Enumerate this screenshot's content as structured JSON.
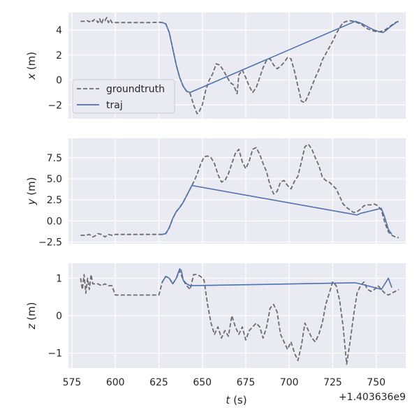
{
  "chart_data": [
    {
      "type": "line",
      "ylabel_var": "x",
      "ylabel_unit": " (m)",
      "xlim": [
        573,
        767
      ],
      "ylim": [
        -3.1,
        5.4
      ],
      "yticks": [
        -2,
        0,
        2,
        4
      ],
      "ytick_labels": [
        "−2",
        "0",
        "2",
        "4"
      ],
      "legend": {
        "placement": "lower-left",
        "entries": [
          "groundtruth",
          "traj"
        ]
      },
      "grid": true,
      "series": [
        {
          "name": "groundtruth",
          "style": "dashed",
          "color": "#6b6b6b",
          "x": [
            580,
            582,
            584,
            585,
            586,
            587,
            588,
            589,
            590,
            591,
            592,
            593,
            594,
            595,
            596,
            597,
            598,
            600,
            605,
            610,
            615,
            620,
            625,
            627,
            629,
            631,
            633,
            635,
            637,
            639,
            641,
            643,
            645,
            647,
            648,
            650,
            652,
            654,
            656,
            658,
            660,
            662,
            664,
            666,
            668,
            670,
            671,
            673,
            675,
            677,
            679,
            681,
            683,
            685,
            687,
            689,
            691,
            693,
            695,
            697,
            699,
            701,
            703,
            705,
            707,
            709,
            711,
            713,
            715,
            717,
            719,
            721,
            723,
            725,
            727,
            729,
            731,
            733,
            735,
            737,
            739,
            741,
            743,
            745,
            747,
            749,
            751,
            753,
            755,
            757,
            759,
            761,
            763
          ],
          "y": [
            4.7,
            4.7,
            4.75,
            4.65,
            4.8,
            4.7,
            4.85,
            4.8,
            4.6,
            4.9,
            4.5,
            4.85,
            4.75,
            5.0,
            4.6,
            4.85,
            4.6,
            4.6,
            4.6,
            4.6,
            4.6,
            4.6,
            4.62,
            4.6,
            4.5,
            3.8,
            2.5,
            1.2,
            0.2,
            -0.5,
            -0.9,
            -1.1,
            -2.0,
            -2.7,
            -2.6,
            -2.0,
            -0.8,
            0.0,
            0.5,
            1.3,
            1.2,
            0.8,
            0.3,
            -0.2,
            -0.4,
            -1.1,
            0.4,
            0.8,
            0.2,
            -0.5,
            -1.0,
            -0.6,
            0.2,
            1.0,
            1.6,
            1.7,
            1.2,
            0.9,
            1.1,
            1.4,
            1.8,
            1.7,
            0.7,
            -0.5,
            -1.7,
            -1.8,
            -1.2,
            -0.5,
            0.2,
            0.8,
            1.6,
            2.1,
            2.6,
            3.1,
            3.7,
            4.2,
            4.6,
            4.7,
            4.75,
            4.7,
            4.6,
            4.5,
            4.3,
            4.1,
            4.0,
            3.9,
            3.85,
            3.9,
            4.0,
            4.2,
            4.4,
            4.6,
            4.7
          ]
        },
        {
          "name": "traj",
          "style": "solid",
          "color": "#4c72b0",
          "x": [
            627,
            629,
            631,
            633,
            635,
            637,
            639,
            641,
            643,
            738,
            740,
            742,
            744,
            746,
            748,
            750,
            752,
            754,
            756,
            758,
            760,
            762
          ],
          "y": [
            4.6,
            4.5,
            3.8,
            2.5,
            1.2,
            0.2,
            -0.5,
            -0.9,
            -1.0,
            4.7,
            4.6,
            4.5,
            4.35,
            4.2,
            4.05,
            3.95,
            3.85,
            3.8,
            4.0,
            4.25,
            4.45,
            4.65
          ]
        }
      ]
    },
    {
      "type": "line",
      "ylabel_var": "y",
      "ylabel_unit": " (m)",
      "xlim": [
        573,
        767
      ],
      "ylim": [
        -2.7,
        9.8
      ],
      "yticks": [
        -2.5,
        0.0,
        2.5,
        5.0,
        7.5
      ],
      "ytick_labels": [
        "−2.5",
        "0.0",
        "2.5",
        "5.0",
        "7.5"
      ],
      "grid": true,
      "series": [
        {
          "name": "groundtruth",
          "style": "dashed",
          "color": "#6b6b6b",
          "x": [
            580,
            583,
            585,
            587,
            589,
            590,
            592,
            594,
            596,
            598,
            600,
            605,
            610,
            615,
            620,
            625,
            627,
            629,
            631,
            633,
            635,
            637,
            639,
            641,
            643,
            645,
            647,
            649,
            651,
            653,
            655,
            657,
            659,
            661,
            663,
            665,
            667,
            669,
            671,
            673,
            675,
            677,
            679,
            681,
            683,
            685,
            687,
            689,
            691,
            693,
            695,
            697,
            699,
            701,
            703,
            705,
            707,
            709,
            711,
            713,
            715,
            717,
            719,
            721,
            723,
            725,
            727,
            729,
            731,
            733,
            735,
            737,
            739,
            741,
            743,
            745,
            747,
            749,
            751,
            753,
            755,
            757,
            759,
            761,
            763
          ],
          "y": [
            -1.7,
            -1.7,
            -1.6,
            -1.9,
            -1.7,
            -1.5,
            -1.6,
            -1.9,
            -1.6,
            -1.7,
            -1.6,
            -1.6,
            -1.6,
            -1.6,
            -1.6,
            -1.6,
            -1.6,
            -1.5,
            -0.8,
            0.3,
            1.1,
            1.6,
            2.2,
            3.0,
            3.8,
            4.6,
            5.5,
            6.7,
            7.6,
            7.7,
            7.5,
            6.8,
            5.5,
            4.6,
            4.8,
            5.6,
            6.8,
            8.0,
            8.5,
            7.0,
            6.2,
            7.1,
            8.5,
            8.7,
            7.9,
            6.8,
            5.8,
            4.2,
            3.2,
            3.5,
            4.6,
            4.8,
            4.2,
            3.8,
            4.7,
            5.3,
            7.0,
            8.8,
            9.1,
            8.5,
            7.5,
            6.6,
            5.2,
            4.8,
            4.6,
            4.2,
            3.8,
            2.9,
            2.0,
            1.6,
            1.3,
            1.0,
            1.1,
            1.4,
            1.8,
            1.9,
            1.9,
            2.0,
            1.8,
            1.3,
            -0.2,
            -1.3,
            -1.7,
            -1.9,
            -2.0
          ]
        },
        {
          "name": "traj",
          "style": "solid",
          "color": "#4c72b0",
          "x": [
            627,
            629,
            631,
            633,
            635,
            637,
            639,
            641,
            643,
            644,
            739,
            741,
            743,
            745,
            747,
            749,
            751,
            753,
            755,
            757,
            759
          ],
          "y": [
            -1.6,
            -1.5,
            -0.8,
            0.3,
            1.1,
            1.6,
            2.2,
            3.0,
            3.8,
            4.2,
            0.7,
            0.9,
            1.0,
            1.1,
            1.2,
            1.3,
            1.4,
            1.5,
            0.4,
            -1.0,
            -1.6
          ]
        }
      ]
    },
    {
      "type": "line",
      "ylabel_var": "z",
      "ylabel_unit": " (m)",
      "xlim": [
        573,
        767
      ],
      "ylim": [
        -1.4,
        1.4
      ],
      "yticks": [
        -1,
        0,
        1
      ],
      "ytick_labels": [
        "−1",
        "0",
        "1"
      ],
      "xticks": [
        575,
        600,
        625,
        650,
        675,
        700,
        725,
        750
      ],
      "xtick_labels": [
        "575",
        "600",
        "625",
        "650",
        "675",
        "700",
        "725",
        "750"
      ],
      "xlabel_var": "t",
      "xlabel_unit": " (s)",
      "offset_text": "+1.403636e9",
      "grid": true,
      "series": [
        {
          "name": "groundtruth",
          "style": "dashed",
          "color": "#6b6b6b",
          "x": [
            580,
            581,
            582,
            583,
            584,
            585,
            586,
            587,
            588,
            590,
            592,
            594,
            596,
            598,
            600,
            605,
            610,
            615,
            620,
            625,
            627,
            629,
            631,
            633,
            635,
            637,
            639,
            641,
            643,
            645,
            647,
            649,
            651,
            653,
            655,
            657,
            659,
            661,
            663,
            665,
            667,
            669,
            671,
            673,
            675,
            677,
            679,
            681,
            683,
            685,
            687,
            689,
            691,
            693,
            695,
            697,
            699,
            701,
            703,
            705,
            707,
            709,
            711,
            713,
            715,
            717,
            719,
            721,
            723,
            725,
            727,
            729,
            731,
            733,
            735,
            737,
            739,
            741,
            743,
            745,
            747,
            749,
            751,
            753,
            755,
            757,
            759,
            761,
            763
          ],
          "y": [
            1.0,
            0.7,
            1.1,
            0.6,
            1.0,
            0.7,
            1.1,
            0.85,
            0.85,
            0.85,
            0.8,
            0.85,
            0.8,
            0.8,
            0.55,
            0.55,
            0.55,
            0.55,
            0.55,
            0.55,
            0.9,
            1.05,
            1.0,
            0.85,
            1.0,
            1.2,
            0.95,
            0.8,
            0.7,
            1.1,
            1.1,
            1.05,
            0.95,
            0.3,
            -0.2,
            -0.5,
            -0.3,
            -0.6,
            -0.4,
            -0.55,
            0.0,
            -0.3,
            -0.5,
            -0.3,
            -0.65,
            -0.4,
            -0.3,
            -0.2,
            -0.3,
            -0.6,
            -0.3,
            0.2,
            0.3,
            0.1,
            -0.5,
            -0.7,
            -0.9,
            -0.7,
            -1.0,
            -1.2,
            -0.8,
            -0.2,
            -0.4,
            -0.6,
            -0.7,
            -0.5,
            -0.2,
            0.3,
            0.6,
            0.9,
            0.8,
            0.4,
            -0.3,
            -1.3,
            -0.7,
            0.0,
            0.6,
            0.8,
            0.9,
            0.7,
            0.65,
            0.7,
            0.8,
            0.7,
            0.6,
            0.55,
            0.6,
            0.65,
            0.7
          ]
        },
        {
          "name": "traj",
          "style": "solid",
          "color": "#4c72b0",
          "x": [
            627,
            629,
            631,
            633,
            635,
            637,
            638,
            639,
            641,
            643,
            738,
            745,
            749,
            753,
            757,
            759
          ],
          "y": [
            0.9,
            1.05,
            1.0,
            0.85,
            1.0,
            1.25,
            1.2,
            0.95,
            0.85,
            0.8,
            0.88,
            0.8,
            0.75,
            0.7,
            1.0,
            0.75
          ]
        }
      ]
    }
  ]
}
